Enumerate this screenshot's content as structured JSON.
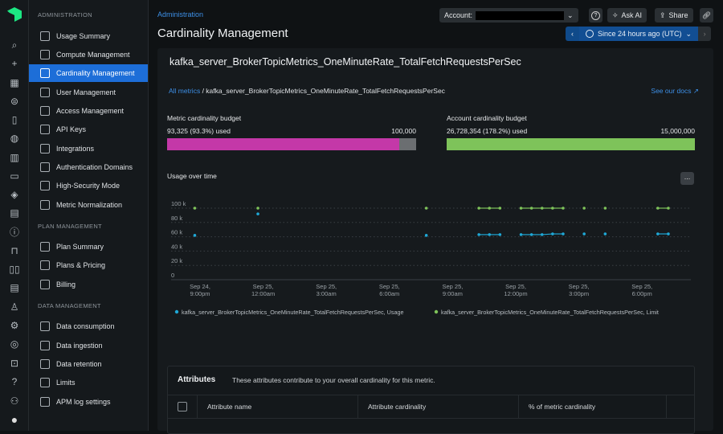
{
  "rail": {
    "icons": [
      "search-icon",
      "plus-icon",
      "apps-icon",
      "entities-icon",
      "mobile-icon",
      "globe-icon",
      "chart-icon",
      "browser-icon",
      "layers-icon",
      "dashboard-icon",
      "alert-icon",
      "inbox-icon",
      "columns-icon",
      "document-icon",
      "robot-icon",
      "gear-badge-icon",
      "target-icon",
      "lock-badge-icon",
      "help-icon",
      "add-user-icon",
      "avatar-icon"
    ]
  },
  "nav": {
    "sections": [
      {
        "title": "ADMINISTRATION",
        "items": [
          "Usage Summary",
          "Compute Management",
          "Cardinality Management",
          "User Management",
          "Access Management",
          "API Keys",
          "Integrations",
          "Authentication Domains",
          "High-Security Mode",
          "Metric Normalization"
        ]
      },
      {
        "title": "PLAN MANAGEMENT",
        "items": [
          "Plan Summary",
          "Plans & Pricing",
          "Billing"
        ]
      },
      {
        "title": "DATA MANAGEMENT",
        "items": [
          "Data consumption",
          "Data ingestion",
          "Data retention",
          "Limits",
          "APM log settings"
        ]
      }
    ],
    "active": "Cardinality Management"
  },
  "header": {
    "breadcrumb": "Administration",
    "title": "Cardinality Management",
    "account_label": "Account:",
    "ask_ai": "Ask AI",
    "share": "Share",
    "time_picker": "Since 24 hours ago (UTC)"
  },
  "metric": {
    "name": "kafka_server_BrokerTopicMetrics_OneMinuteRate_TotalFetchRequestsPerSec",
    "breadcrumb_link": "All metrics",
    "breadcrumb_sep": " / ",
    "docs_link": "See our docs",
    "metric_budget": {
      "label": "Metric cardinality budget",
      "used": "93,325 (93.3%) used",
      "limit": "100,000",
      "fraction": 0.933,
      "color": "#c438a8"
    },
    "account_budget": {
      "label": "Account cardinality budget",
      "used": "26,728,354 (178.2%) used",
      "limit": "15,000,000",
      "fraction": 1.0,
      "color": "#7ec35a"
    },
    "usage_title": "Usage over time",
    "more_button": "..."
  },
  "chart_data": {
    "type": "line",
    "xlim": [
      "Sep 24 20:30",
      "Sep 25 20:00"
    ],
    "ylim": [
      0,
      100000
    ],
    "yticks": [
      {
        "v": 0,
        "label": "0"
      },
      {
        "v": 20000,
        "label": "20 k"
      },
      {
        "v": 40000,
        "label": "40 k"
      },
      {
        "v": 60000,
        "label": "60 k"
      },
      {
        "v": 80000,
        "label": "80 k"
      },
      {
        "v": 100000,
        "label": "100 k"
      }
    ],
    "xticks": [
      {
        "t": "Sep 24 21:00",
        "l1": "Sep 24,",
        "l2": "9:00pm"
      },
      {
        "t": "Sep 25 00:00",
        "l1": "Sep 25,",
        "l2": "12:00am"
      },
      {
        "t": "Sep 25 03:00",
        "l1": "Sep 25,",
        "l2": "3:00am"
      },
      {
        "t": "Sep 25 06:00",
        "l1": "Sep 25,",
        "l2": "6:00am"
      },
      {
        "t": "Sep 25 09:00",
        "l1": "Sep 25,",
        "l2": "9:00am"
      },
      {
        "t": "Sep 25 12:00",
        "l1": "Sep 25,",
        "l2": "12:00pm"
      },
      {
        "t": "Sep 25 15:00",
        "l1": "Sep 25,",
        "l2": "3:00pm"
      },
      {
        "t": "Sep 25 18:00",
        "l1": "Sep 25,",
        "l2": "6:00pm"
      }
    ],
    "grid": true,
    "legend": "bottom",
    "x": [
      "Sep 24 20:45",
      "Sep 24 23:45",
      "Sep 25 07:45",
      "Sep 25 10:15",
      "Sep 25 10:45",
      "Sep 25 11:15",
      "Sep 25 12:15",
      "Sep 25 12:45",
      "Sep 25 13:15",
      "Sep 25 13:45",
      "Sep 25 14:15",
      "Sep 25 15:15",
      "Sep 25 16:15",
      "Sep 25 18:45",
      "Sep 25 19:15"
    ],
    "series": [
      {
        "name": "kafka_server_BrokerTopicMetrics_OneMinuteRate_TotalFetchRequestsPerSec, Usage",
        "color": "#1fa8d6",
        "values": [
          62000,
          92000,
          62000,
          63000,
          63000,
          63000,
          63000,
          63000,
          63000,
          64000,
          64000,
          64000,
          64000,
          64000,
          64000
        ]
      },
      {
        "name": "kafka_server_BrokerTopicMetrics_OneMinuteRate_TotalFetchRequestsPerSec, Limit",
        "color": "#7ec35a",
        "values": [
          100000,
          100000,
          100000,
          100000,
          100000,
          100000,
          100000,
          100000,
          100000,
          100000,
          100000,
          100000,
          100000,
          100000,
          100000
        ]
      }
    ]
  },
  "attributes": {
    "title": "Attributes",
    "description": "These attributes contribute to your overall cardinality for this metric.",
    "columns": [
      "Attribute name",
      "Attribute cardinality",
      "% of metric cardinality"
    ]
  }
}
